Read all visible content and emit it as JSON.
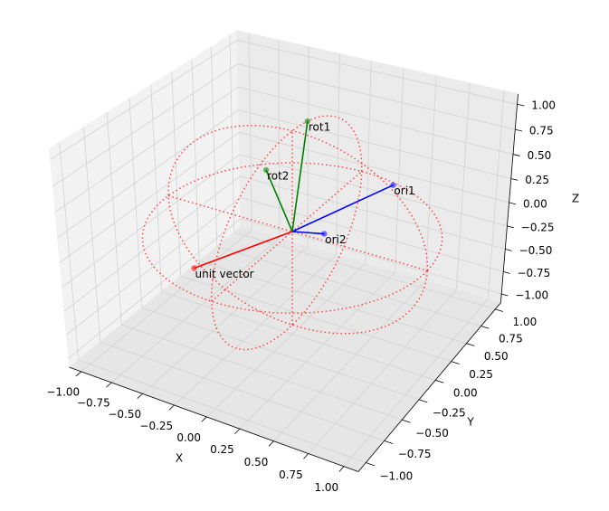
{
  "chart_data": {
    "type": "vector3d",
    "x_label": "X",
    "y_label": "Y",
    "z_label": "Z",
    "xlim": [
      -1,
      1
    ],
    "ylim": [
      -1,
      1
    ],
    "zlim": [
      -1,
      1
    ],
    "xticks": [
      {
        "value": -1,
        "label": "−1.00"
      },
      {
        "value": -0.75,
        "label": "−0.75"
      },
      {
        "value": -0.5,
        "label": "−0.50"
      },
      {
        "value": -0.25,
        "label": "−0.25"
      },
      {
        "value": 0,
        "label": "0.00"
      },
      {
        "value": 0.25,
        "label": "0.25"
      },
      {
        "value": 0.5,
        "label": "0.50"
      },
      {
        "value": 0.75,
        "label": "0.75"
      },
      {
        "value": 1,
        "label": "1.00"
      }
    ],
    "yticks": [
      {
        "value": -1,
        "label": "−1.00"
      },
      {
        "value": -0.75,
        "label": "−0.75"
      },
      {
        "value": -0.5,
        "label": "−0.50"
      },
      {
        "value": -0.25,
        "label": "−0.25"
      },
      {
        "value": 0,
        "label": "0.00"
      },
      {
        "value": 0.25,
        "label": "0.25"
      },
      {
        "value": 0.5,
        "label": "0.50"
      },
      {
        "value": 0.75,
        "label": "0.75"
      },
      {
        "value": 1,
        "label": "1.00"
      }
    ],
    "zticks": [
      {
        "value": -1,
        "label": "−1.00"
      },
      {
        "value": -0.75,
        "label": "−0.75"
      },
      {
        "value": -0.5,
        "label": "−0.50"
      },
      {
        "value": -0.25,
        "label": "−0.25"
      },
      {
        "value": 0,
        "label": "0.00"
      },
      {
        "value": 0.25,
        "label": "0.25"
      },
      {
        "value": 0.5,
        "label": "0.50"
      },
      {
        "value": 0.75,
        "label": "0.75"
      },
      {
        "value": 1,
        "label": "1.00"
      }
    ],
    "grid": true,
    "vectors": [
      {
        "name": "unit vector",
        "color": "#ff0000",
        "x": -0.45,
        "y": -0.52,
        "z": -0.2
      },
      {
        "name": "ori1",
        "color": "#0000ff",
        "x": 0.35,
        "y": 0.8,
        "z": 0.1
      },
      {
        "name": "ori2",
        "color": "#0000ff",
        "x": 0.2,
        "y": 0.08,
        "z": 0
      },
      {
        "name": "rot1",
        "color": "#008000",
        "x": 0,
        "y": 0.2,
        "z": 0.98
      },
      {
        "name": "rot2",
        "color": "#008000",
        "x": -0.2,
        "y": 0,
        "z": 0.55
      }
    ]
  }
}
